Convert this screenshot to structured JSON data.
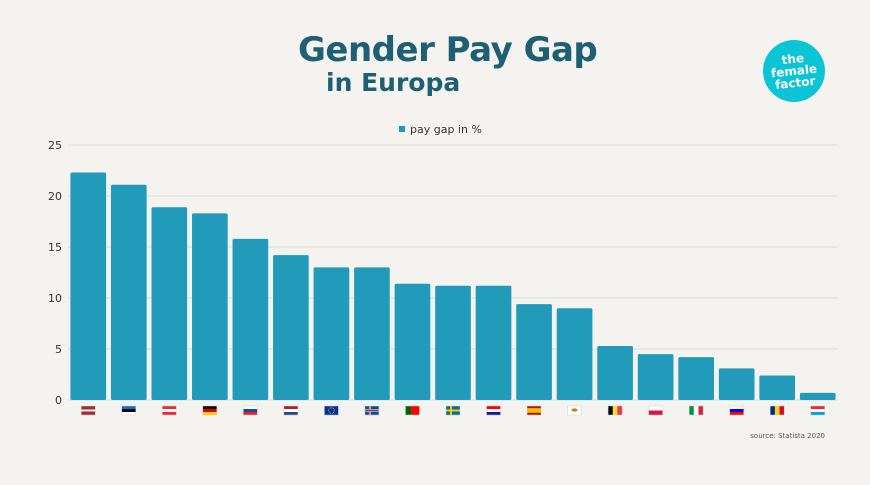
{
  "title_line1": "Gender Pay Gap",
  "title_line2": "in Europa",
  "logo_text": "the female factor",
  "legend_label": "pay gap in %",
  "source": "source: Statista 2020",
  "colors": {
    "bar": "#229bbb",
    "title": "#1d5f73",
    "logo": "#0bc4d6",
    "background": "#f4f3ef"
  },
  "chart_data": {
    "type": "bar",
    "categories": [
      "Latvia",
      "Estonia",
      "Austria",
      "Germany",
      "Slovakia",
      "Netherlands",
      "EU",
      "Iceland",
      "Portugal",
      "Sweden",
      "Croatia",
      "Spain",
      "Cyprus",
      "Belgium",
      "Poland",
      "Italy",
      "Slovenia",
      "Romania",
      "Luxembourg"
    ],
    "category_icons": [
      "latvia-flag",
      "estonia-flag",
      "austria-flag",
      "germany-flag",
      "slovakia-flag",
      "netherlands-flag",
      "eu-flag",
      "iceland-flag",
      "portugal-flag",
      "sweden-flag",
      "croatia-flag",
      "spain-flag",
      "cyprus-flag",
      "belgium-flag",
      "poland-flag",
      "italy-flag",
      "slovenia-flag",
      "romania-flag",
      "luxembourg-flag"
    ],
    "series": [
      {
        "name": "pay gap in %",
        "values": [
          22.3,
          21.1,
          18.9,
          18.3,
          15.8,
          14.2,
          13.0,
          13.0,
          11.4,
          11.2,
          11.2,
          9.4,
          9.0,
          5.3,
          4.5,
          4.2,
          3.1,
          2.4,
          0.7
        ]
      }
    ],
    "yticks": [
      "0",
      "5",
      "10",
      "15",
      "20",
      "25"
    ],
    "ylim": [
      0,
      25
    ],
    "grid": true,
    "legend_position": "top-center"
  }
}
